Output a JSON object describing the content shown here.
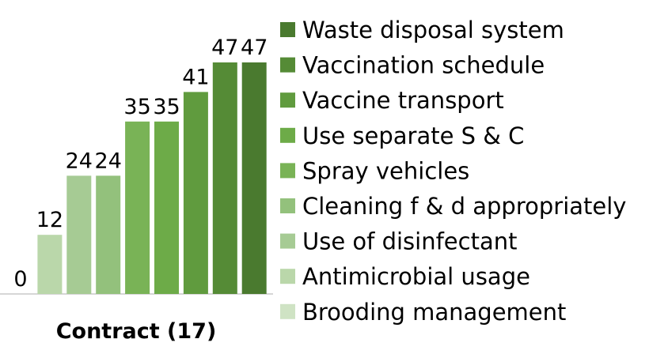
{
  "chart_data": {
    "type": "bar",
    "categories": [
      "Contract (17)"
    ],
    "series": [
      {
        "name": "Brooding management",
        "color": "#cfe3c4",
        "values": [
          0
        ]
      },
      {
        "name": "Antimicrobial usage",
        "color": "#bad7aa",
        "values": [
          12
        ]
      },
      {
        "name": "Use of disinfectant",
        "color": "#a6cb94",
        "values": [
          24
        ]
      },
      {
        "name": "Cleaning f & d appropriately",
        "color": "#93c17c",
        "values": [
          24
        ]
      },
      {
        "name": "Spray vehicles",
        "color": "#79b356",
        "values": [
          35
        ]
      },
      {
        "name": "Use separate S & C",
        "color": "#6dab48",
        "values": [
          35
        ]
      },
      {
        "name": "Vaccine transport",
        "color": "#609b3e",
        "values": [
          41
        ]
      },
      {
        "name": "Vaccination schedule",
        "color": "#558b36",
        "values": [
          47
        ]
      },
      {
        "name": "Waste disposal system",
        "color": "#4a7a2f",
        "values": [
          47
        ]
      }
    ]
  }
}
